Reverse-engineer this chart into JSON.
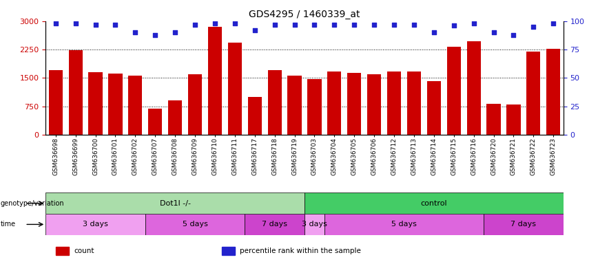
{
  "title": "GDS4295 / 1460339_at",
  "samples": [
    "GSM636698",
    "GSM636699",
    "GSM636700",
    "GSM636701",
    "GSM636702",
    "GSM636707",
    "GSM636708",
    "GSM636709",
    "GSM636710",
    "GSM636711",
    "GSM636717",
    "GSM636718",
    "GSM636719",
    "GSM636703",
    "GSM636704",
    "GSM636705",
    "GSM636706",
    "GSM636712",
    "GSM636713",
    "GSM636714",
    "GSM636715",
    "GSM636716",
    "GSM636720",
    "GSM636721",
    "GSM636722",
    "GSM636723"
  ],
  "bar_values": [
    1700,
    2230,
    1650,
    1620,
    1560,
    680,
    900,
    1600,
    2850,
    2430,
    1000,
    1700,
    1560,
    1460,
    1670,
    1640,
    1600,
    1660,
    1660,
    1420,
    2330,
    2470,
    820,
    800,
    2190,
    2270
  ],
  "percentile_values": [
    98,
    98,
    97,
    97,
    90,
    88,
    90,
    97,
    98,
    98,
    92,
    97,
    97,
    97,
    97,
    97,
    97,
    97,
    97,
    90,
    96,
    98,
    90,
    88,
    95,
    98
  ],
  "bar_color": "#cc0000",
  "dot_color": "#2222cc",
  "ylim_left": [
    0,
    3000
  ],
  "ylim_right": [
    0,
    100
  ],
  "yticks_left": [
    0,
    750,
    1500,
    2250,
    3000
  ],
  "yticks_right": [
    0,
    25,
    50,
    75,
    100
  ],
  "grid_values": [
    750,
    1500,
    2250
  ],
  "genotype_groups": [
    {
      "label": "Dot1l -/-",
      "start": 0,
      "end": 13,
      "color": "#aaddaa"
    },
    {
      "label": "control",
      "start": 13,
      "end": 26,
      "color": "#44cc66"
    }
  ],
  "time_groups": [
    {
      "label": "3 days",
      "start": 0,
      "end": 5,
      "color": "#f0a0f0"
    },
    {
      "label": "5 days",
      "start": 5,
      "end": 10,
      "color": "#dd66dd"
    },
    {
      "label": "7 days",
      "start": 10,
      "end": 13,
      "color": "#cc44cc"
    },
    {
      "label": "3 days",
      "start": 13,
      "end": 14,
      "color": "#f0a0f0"
    },
    {
      "label": "5 days",
      "start": 14,
      "end": 22,
      "color": "#dd66dd"
    },
    {
      "label": "7 days",
      "start": 22,
      "end": 26,
      "color": "#cc44cc"
    }
  ],
  "legend_items": [
    {
      "label": "count",
      "color": "#cc0000"
    },
    {
      "label": "percentile rank within the sample",
      "color": "#2222cc"
    }
  ],
  "background_color": "#ffffff",
  "title_fontsize": 10
}
